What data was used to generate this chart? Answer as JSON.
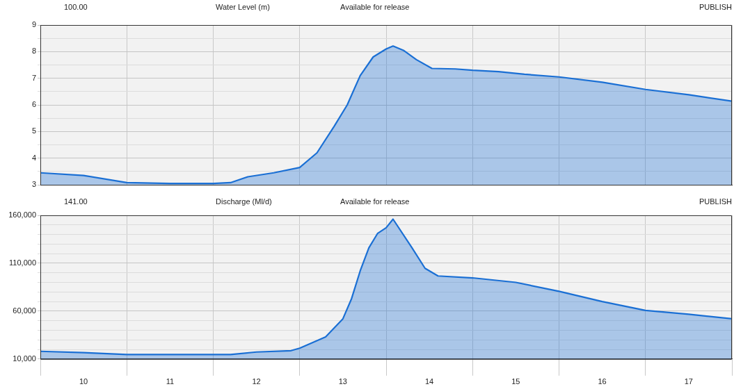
{
  "chart_data": [
    {
      "type": "area",
      "title": "Water Level (m)",
      "annotations": [
        "100.00",
        "Available for release",
        "PUBLISH"
      ],
      "tick_labels": "y",
      "grid": true,
      "legend": false,
      "marker": "none",
      "line_style": "solid",
      "xlim": [
        10,
        18
      ],
      "xticks": [
        {
          "value": 10,
          "label": null
        },
        {
          "value": 11,
          "label": null
        },
        {
          "value": 12,
          "label": null
        },
        {
          "value": 13,
          "label": null
        },
        {
          "value": 14,
          "label": null
        },
        {
          "value": 15,
          "label": null
        },
        {
          "value": 16,
          "label": null
        },
        {
          "value": 17,
          "label": null
        },
        {
          "value": 18,
          "label": null
        }
      ],
      "ylim": [
        3,
        9
      ],
      "yticks": [
        3,
        {
          "value": 3.5,
          "label": null
        },
        4,
        {
          "value": 4.5,
          "label": null
        },
        5,
        {
          "value": 5.5,
          "label": null
        },
        6,
        {
          "value": 6.5,
          "label": null
        },
        7,
        {
          "value": 7.5,
          "label": null
        },
        8,
        {
          "value": 8.5,
          "label": null
        },
        9
      ],
      "series": [
        {
          "color": "#1a6fd4",
          "x": [
            10,
            10.5,
            11,
            11.5,
            12,
            12.2,
            12.4,
            12.7,
            13,
            13.2,
            13.4,
            13.55,
            13.7,
            13.85,
            14,
            14.08,
            14.2,
            14.35,
            14.53,
            14.8,
            15,
            15.3,
            15.6,
            16,
            16.5,
            17,
            17.5,
            18
          ],
          "values": [
            3.45,
            3.35,
            3.08,
            3.05,
            3.05,
            3.08,
            3.3,
            3.45,
            3.65,
            4.2,
            5.2,
            6.0,
            7.1,
            7.8,
            8.1,
            8.21,
            8.05,
            7.7,
            7.37,
            7.35,
            7.3,
            7.25,
            7.15,
            7.05,
            6.85,
            6.58,
            6.38,
            6.14
          ]
        }
      ]
    },
    {
      "type": "area",
      "title": "Discharge (Ml/d)",
      "annotations": [
        "141.00",
        "Available for release",
        "PUBLISH"
      ],
      "grid": true,
      "legend": false,
      "marker": "none",
      "line_style": "solid",
      "xlim": [
        10,
        18
      ],
      "xticks": [
        {
          "value": 10,
          "label": null
        },
        {
          "value": 10.5,
          "label": "10"
        },
        {
          "value": 11,
          "label": null
        },
        {
          "value": 11.5,
          "label": "11"
        },
        {
          "value": 12,
          "label": null
        },
        {
          "value": 12.5,
          "label": "12"
        },
        {
          "value": 13,
          "label": null
        },
        {
          "value": 13.5,
          "label": "13"
        },
        {
          "value": 14,
          "label": null
        },
        {
          "value": 14.5,
          "label": "14"
        },
        {
          "value": 15,
          "label": null
        },
        {
          "value": 15.5,
          "label": "15"
        },
        {
          "value": 16,
          "label": null
        },
        {
          "value": 16.5,
          "label": "16"
        },
        {
          "value": 17,
          "label": null
        },
        {
          "value": 17.5,
          "label": "17"
        },
        {
          "value": 18,
          "label": null
        }
      ],
      "ylim": [
        10000,
        160000
      ],
      "yticks": [
        {
          "value": 10000,
          "label": "10,000"
        },
        {
          "value": 20000,
          "label": null
        },
        {
          "value": 30000,
          "label": null
        },
        {
          "value": 40000,
          "label": null
        },
        {
          "value": 50000,
          "label": null
        },
        {
          "value": 60000,
          "label": "60,000"
        },
        {
          "value": 70000,
          "label": null
        },
        {
          "value": 80000,
          "label": null
        },
        {
          "value": 90000,
          "label": null
        },
        {
          "value": 100000,
          "label": null
        },
        {
          "value": 110000,
          "label": "110,000"
        },
        {
          "value": 120000,
          "label": null
        },
        {
          "value": 130000,
          "label": null
        },
        {
          "value": 140000,
          "label": null
        },
        {
          "value": 150000,
          "label": null
        },
        {
          "value": 160000,
          "label": "160,000"
        }
      ],
      "series": [
        {
          "color": "#1a6fd4",
          "x": [
            10,
            10.5,
            11,
            11.5,
            12,
            12.2,
            12.5,
            12.9,
            13,
            13.3,
            13.5,
            13.6,
            13.7,
            13.8,
            13.9,
            14,
            14.08,
            14.3,
            14.45,
            14.6,
            15,
            15.5,
            16,
            16.5,
            17,
            17.5,
            18
          ],
          "values": [
            18000,
            16700,
            14700,
            14700,
            14700,
            14700,
            17300,
            18700,
            21300,
            33000,
            52000,
            73000,
            102000,
            126000,
            141000,
            147000,
            156000,
            126000,
            104700,
            96700,
            94700,
            90000,
            80700,
            70000,
            60700,
            56700,
            52000
          ]
        }
      ]
    }
  ]
}
